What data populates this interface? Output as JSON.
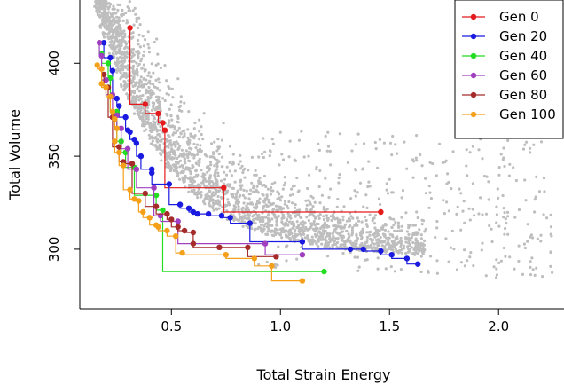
{
  "chart_data": {
    "type": "scatter",
    "xlabel": "Total Strain Energy",
    "ylabel": "Total Volume",
    "xlim": [
      0.08,
      2.3
    ],
    "ylim": [
      268,
      434
    ],
    "x_ticks": [
      0.5,
      1.0,
      1.5,
      2.0
    ],
    "x_tick_labels": [
      "0.5",
      "1.0",
      "1.5",
      "2.0"
    ],
    "y_ticks": [
      300,
      350,
      400
    ],
    "y_tick_labels": [
      "300",
      "350",
      "400"
    ],
    "legend_position": "top-right",
    "background_cloud_color": "#bebebe",
    "series": [
      {
        "name": "Gen 0",
        "color": "#e41a1c",
        "points": [
          [
            0.31,
            419
          ],
          [
            0.38,
            378
          ],
          [
            0.44,
            373
          ],
          [
            0.46,
            368
          ],
          [
            0.47,
            364
          ],
          [
            0.74,
            333
          ],
          [
            1.46,
            320
          ]
        ]
      },
      {
        "name": "Gen 20",
        "color": "#1a1ae0",
        "points": [
          [
            0.19,
            411
          ],
          [
            0.22,
            403
          ],
          [
            0.23,
            396
          ],
          [
            0.25,
            381
          ],
          [
            0.26,
            377
          ],
          [
            0.29,
            371
          ],
          [
            0.3,
            364
          ],
          [
            0.31,
            363
          ],
          [
            0.33,
            359
          ],
          [
            0.34,
            357
          ],
          [
            0.36,
            350
          ],
          [
            0.41,
            343
          ],
          [
            0.41,
            341
          ],
          [
            0.49,
            335
          ],
          [
            0.54,
            324
          ],
          [
            0.58,
            322
          ],
          [
            0.6,
            320
          ],
          [
            0.62,
            319
          ],
          [
            0.67,
            319
          ],
          [
            0.73,
            318
          ],
          [
            0.77,
            317
          ],
          [
            0.86,
            314
          ],
          [
            1.1,
            304
          ],
          [
            1.32,
            300
          ],
          [
            1.38,
            300
          ],
          [
            1.46,
            299
          ],
          [
            1.51,
            297
          ],
          [
            1.58,
            295
          ],
          [
            1.63,
            292
          ]
        ]
      },
      {
        "name": "Gen 40",
        "color": "#22dd22",
        "points": [
          [
            0.18,
            405
          ],
          [
            0.21,
            400
          ],
          [
            0.22,
            392
          ],
          [
            0.25,
            374
          ],
          [
            0.27,
            358
          ],
          [
            0.29,
            352
          ],
          [
            0.33,
            344
          ],
          [
            0.43,
            329
          ],
          [
            0.46,
            321
          ],
          [
            1.2,
            288
          ]
        ]
      },
      {
        "name": "Gen 60",
        "color": "#a040c0",
        "points": [
          [
            0.17,
            411
          ],
          [
            0.18,
            404
          ],
          [
            0.2,
            391
          ],
          [
            0.23,
            383
          ],
          [
            0.25,
            372
          ],
          [
            0.27,
            365
          ],
          [
            0.3,
            354
          ],
          [
            0.34,
            343
          ],
          [
            0.42,
            333
          ],
          [
            0.45,
            318
          ],
          [
            0.53,
            315
          ],
          [
            0.93,
            303
          ],
          [
            1.1,
            297
          ]
        ]
      },
      {
        "name": "Gen 80",
        "color": "#a52a2a",
        "points": [
          [
            0.19,
            394
          ],
          [
            0.21,
            387
          ],
          [
            0.23,
            371
          ],
          [
            0.26,
            355
          ],
          [
            0.28,
            347
          ],
          [
            0.32,
            346
          ],
          [
            0.38,
            330
          ],
          [
            0.43,
            323
          ],
          [
            0.48,
            319
          ],
          [
            0.5,
            316
          ],
          [
            0.53,
            312
          ],
          [
            0.56,
            310
          ],
          [
            0.6,
            309
          ],
          [
            0.6,
            303
          ],
          [
            0.72,
            301
          ],
          [
            0.85,
            301
          ],
          [
            0.98,
            296
          ]
        ]
      },
      {
        "name": "Gen 100",
        "color": "#f5a01a",
        "points": [
          [
            0.16,
            399
          ],
          [
            0.18,
            397
          ],
          [
            0.18,
            389
          ],
          [
            0.2,
            387
          ],
          [
            0.22,
            382
          ],
          [
            0.23,
            374
          ],
          [
            0.24,
            370
          ],
          [
            0.25,
            365
          ],
          [
            0.24,
            358
          ],
          [
            0.26,
            352
          ],
          [
            0.28,
            345
          ],
          [
            0.31,
            332
          ],
          [
            0.33,
            327
          ],
          [
            0.35,
            326
          ],
          [
            0.37,
            320
          ],
          [
            0.4,
            317
          ],
          [
            0.43,
            313
          ],
          [
            0.44,
            312
          ],
          [
            0.48,
            310
          ],
          [
            0.52,
            307
          ],
          [
            0.55,
            298
          ],
          [
            0.75,
            297
          ],
          [
            0.88,
            295
          ],
          [
            0.96,
            291
          ],
          [
            1.1,
            283
          ]
        ]
      }
    ]
  }
}
